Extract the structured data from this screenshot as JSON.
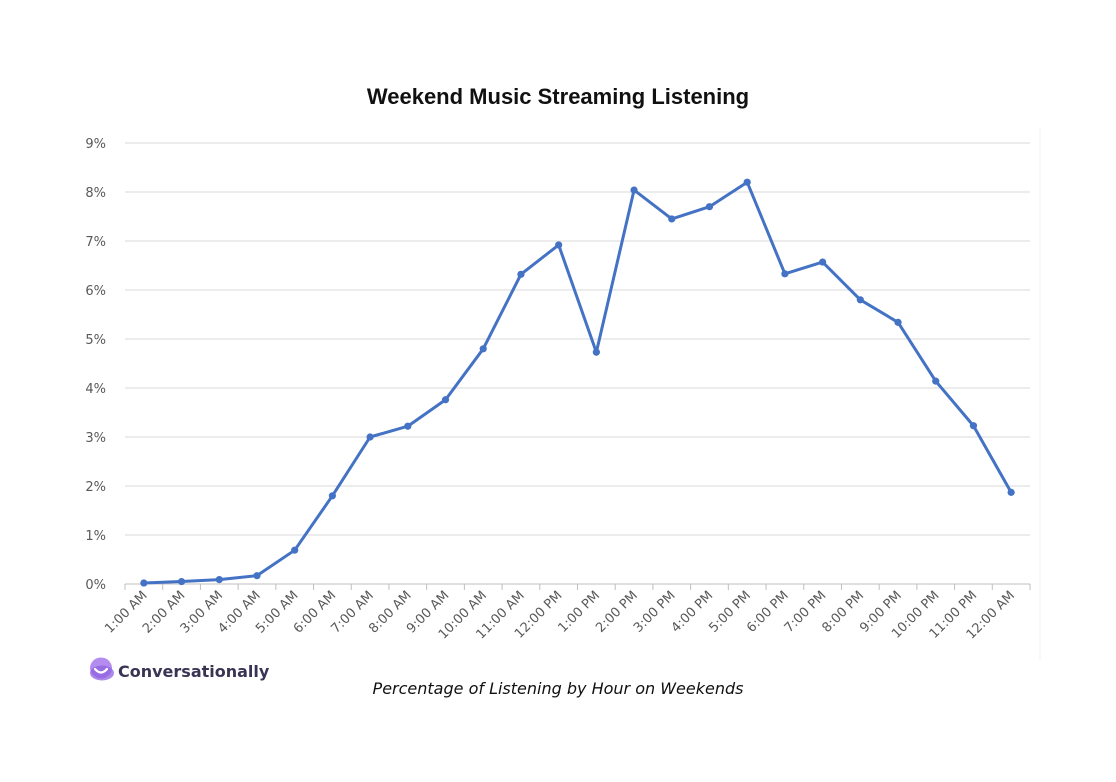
{
  "chart_data": {
    "type": "line",
    "title": "Weekend Music Streaming Listening",
    "xlabel": "",
    "ylabel": "",
    "caption": "Percentage of Listening by Hour on Weekends",
    "ylim": [
      0,
      9
    ],
    "y_ticks": [
      "0%",
      "1%",
      "2%",
      "3%",
      "4%",
      "5%",
      "6%",
      "7%",
      "8%",
      "9%"
    ],
    "categories": [
      "1:00 AM",
      "2:00 AM",
      "3:00 AM",
      "4:00 AM",
      "5:00 AM",
      "6:00 AM",
      "7:00 AM",
      "8:00 AM",
      "9:00 AM",
      "10:00 AM",
      "11:00 AM",
      "12:00 PM",
      "1:00 PM",
      "2:00 PM",
      "3:00 PM",
      "4:00 PM",
      "5:00 PM",
      "6:00 PM",
      "7:00 PM",
      "8:00 PM",
      "9:00 PM",
      "10:00 PM",
      "11:00 PM",
      "12:00 AM"
    ],
    "series": [
      {
        "values": [
          0.02,
          0.05,
          0.09,
          0.17,
          0.69,
          1.8,
          3.0,
          3.22,
          3.76,
          4.8,
          6.32,
          6.92,
          4.73,
          8.04,
          7.45,
          7.7,
          8.2,
          6.33,
          6.57,
          5.8,
          5.34,
          4.14,
          3.23,
          1.87
        ],
        "color": "#4472c4"
      }
    ],
    "grid": true,
    "legend": "none"
  },
  "branding": {
    "logo_text": "Conversationally",
    "logo_color": "#a77bea"
  }
}
